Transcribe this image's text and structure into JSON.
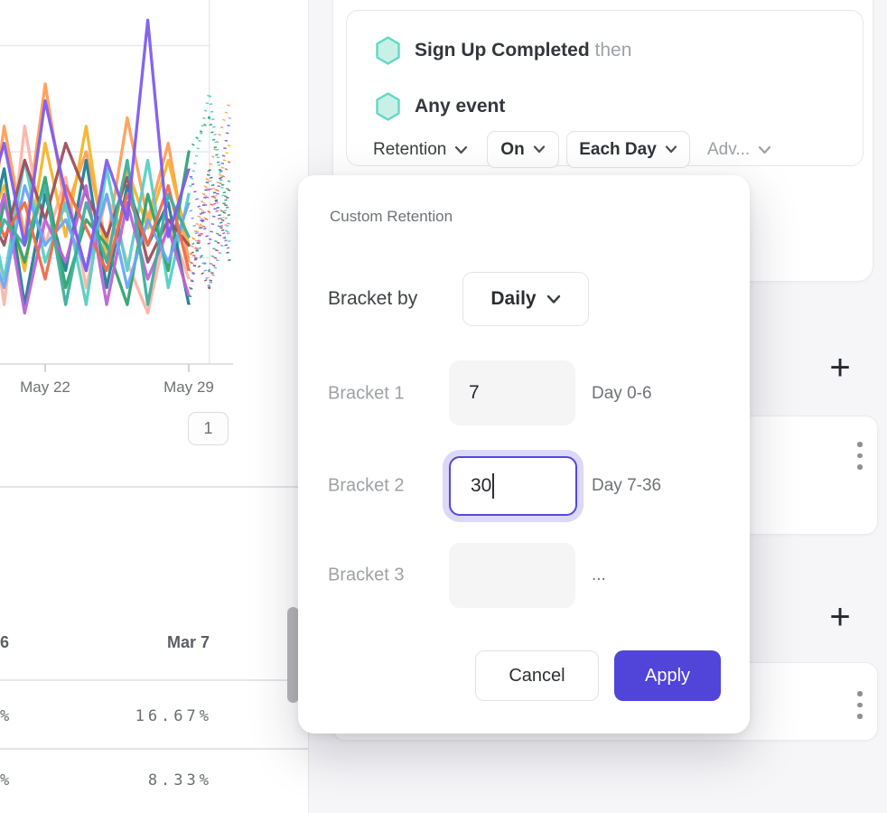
{
  "ui_colors": {
    "accent": "#5044d9",
    "focus_ring": "#dcd8f7",
    "focus_border": "#5347dc",
    "hexagon_fill": "#c8f0e6",
    "hexagon_stroke": "#5fd9c4"
  },
  "report_panel": {
    "pagination_label": "1",
    "table": {
      "headers": [
        "6",
        "Mar 7"
      ],
      "rows": [
        {
          "left": "%",
          "value": "16.67%"
        },
        {
          "left": "%",
          "value": "8.33%"
        }
      ]
    }
  },
  "query_panel": {
    "steps": [
      {
        "event": "Sign Up Completed",
        "suffix": "then"
      },
      {
        "event": "Any event",
        "suffix": ""
      }
    ],
    "controls": {
      "measurement": "Retention",
      "on": "On",
      "interval": "Each Day",
      "advanced": "Adv..."
    }
  },
  "right_rail": {
    "add_icon_1": "+",
    "add_icon_2": "+"
  },
  "modal": {
    "title": "Custom Retention",
    "bracket_by_label": "Bracket by",
    "bracket_by_value": "Daily",
    "rows": [
      {
        "label": "Bracket 1",
        "value": "7",
        "hint": "Day 0-6",
        "state": "filled"
      },
      {
        "label": "Bracket 2",
        "value": "30",
        "hint": "Day 7-36",
        "state": "focused"
      },
      {
        "label": "Bracket 3",
        "value": "",
        "hint": "...",
        "state": "empty"
      }
    ],
    "cancel_label": "Cancel",
    "apply_label": "Apply"
  },
  "chart_data": {
    "type": "line",
    "title": "",
    "xlabel": "",
    "ylabel": "",
    "ylim": [
      0,
      100
    ],
    "grid": true,
    "legend": "none",
    "x_days_of_may": [
      19,
      20,
      21,
      22,
      23,
      24,
      25,
      26,
      27,
      28,
      29,
      30,
      31
    ],
    "ticks": [
      {
        "day": 22,
        "label": "May 22"
      },
      {
        "day": 29,
        "label": "May 29"
      }
    ],
    "gridlines_pct": [
      25,
      50,
      75
    ],
    "vertical_gridline_day": 30,
    "dashed_from_index": 10,
    "series": [
      {
        "color": "#ff9e57",
        "values": [
          20,
          56,
          30,
          66,
          36,
          50,
          28,
          58,
          34,
          52,
          24,
          46,
          62
        ]
      },
      {
        "color": "#ffb3a7",
        "values": [
          48,
          14,
          56,
          28,
          44,
          18,
          40,
          24,
          12,
          34,
          20,
          44,
          30
        ]
      },
      {
        "color": "#f7b42c",
        "values": [
          30,
          42,
          22,
          52,
          30,
          56,
          24,
          46,
          32,
          48,
          28,
          36,
          52
        ]
      },
      {
        "color": "#56d0c5",
        "values": [
          42,
          20,
          48,
          24,
          38,
          14,
          46,
          22,
          48,
          18,
          40,
          64,
          28
        ]
      },
      {
        "color": "#1f7f92",
        "values": [
          24,
          46,
          14,
          40,
          22,
          48,
          18,
          42,
          28,
          38,
          14,
          46,
          24
        ]
      },
      {
        "color": "#2fa36e",
        "values": [
          14,
          38,
          24,
          44,
          18,
          34,
          28,
          14,
          40,
          22,
          50,
          58,
          34
        ]
      },
      {
        "color": "#9e4f5d",
        "values": [
          38,
          28,
          48,
          34,
          52,
          40,
          30,
          44,
          24,
          34,
          28,
          18,
          42
        ]
      },
      {
        "color": "#bb64d8",
        "values": [
          22,
          40,
          12,
          34,
          24,
          42,
          14,
          38,
          20,
          32,
          16,
          42,
          26
        ]
      },
      {
        "color": "#6ba7f5",
        "values": [
          32,
          18,
          42,
          28,
          34,
          22,
          40,
          18,
          34,
          24,
          38,
          18,
          34
        ]
      },
      {
        "color": "#ef6a4c",
        "values": [
          44,
          30,
          38,
          20,
          42,
          32,
          22,
          40,
          28,
          42,
          22,
          36,
          48
        ]
      },
      {
        "color": "#3fae9e",
        "values": [
          18,
          34,
          28,
          42,
          14,
          38,
          24,
          48,
          14,
          40,
          30,
          22,
          44
        ]
      },
      {
        "color": "#7e5bef",
        "values": [
          35,
          52,
          28,
          62,
          40,
          22,
          48,
          34,
          81,
          30,
          46,
          28,
          58
        ]
      }
    ]
  }
}
